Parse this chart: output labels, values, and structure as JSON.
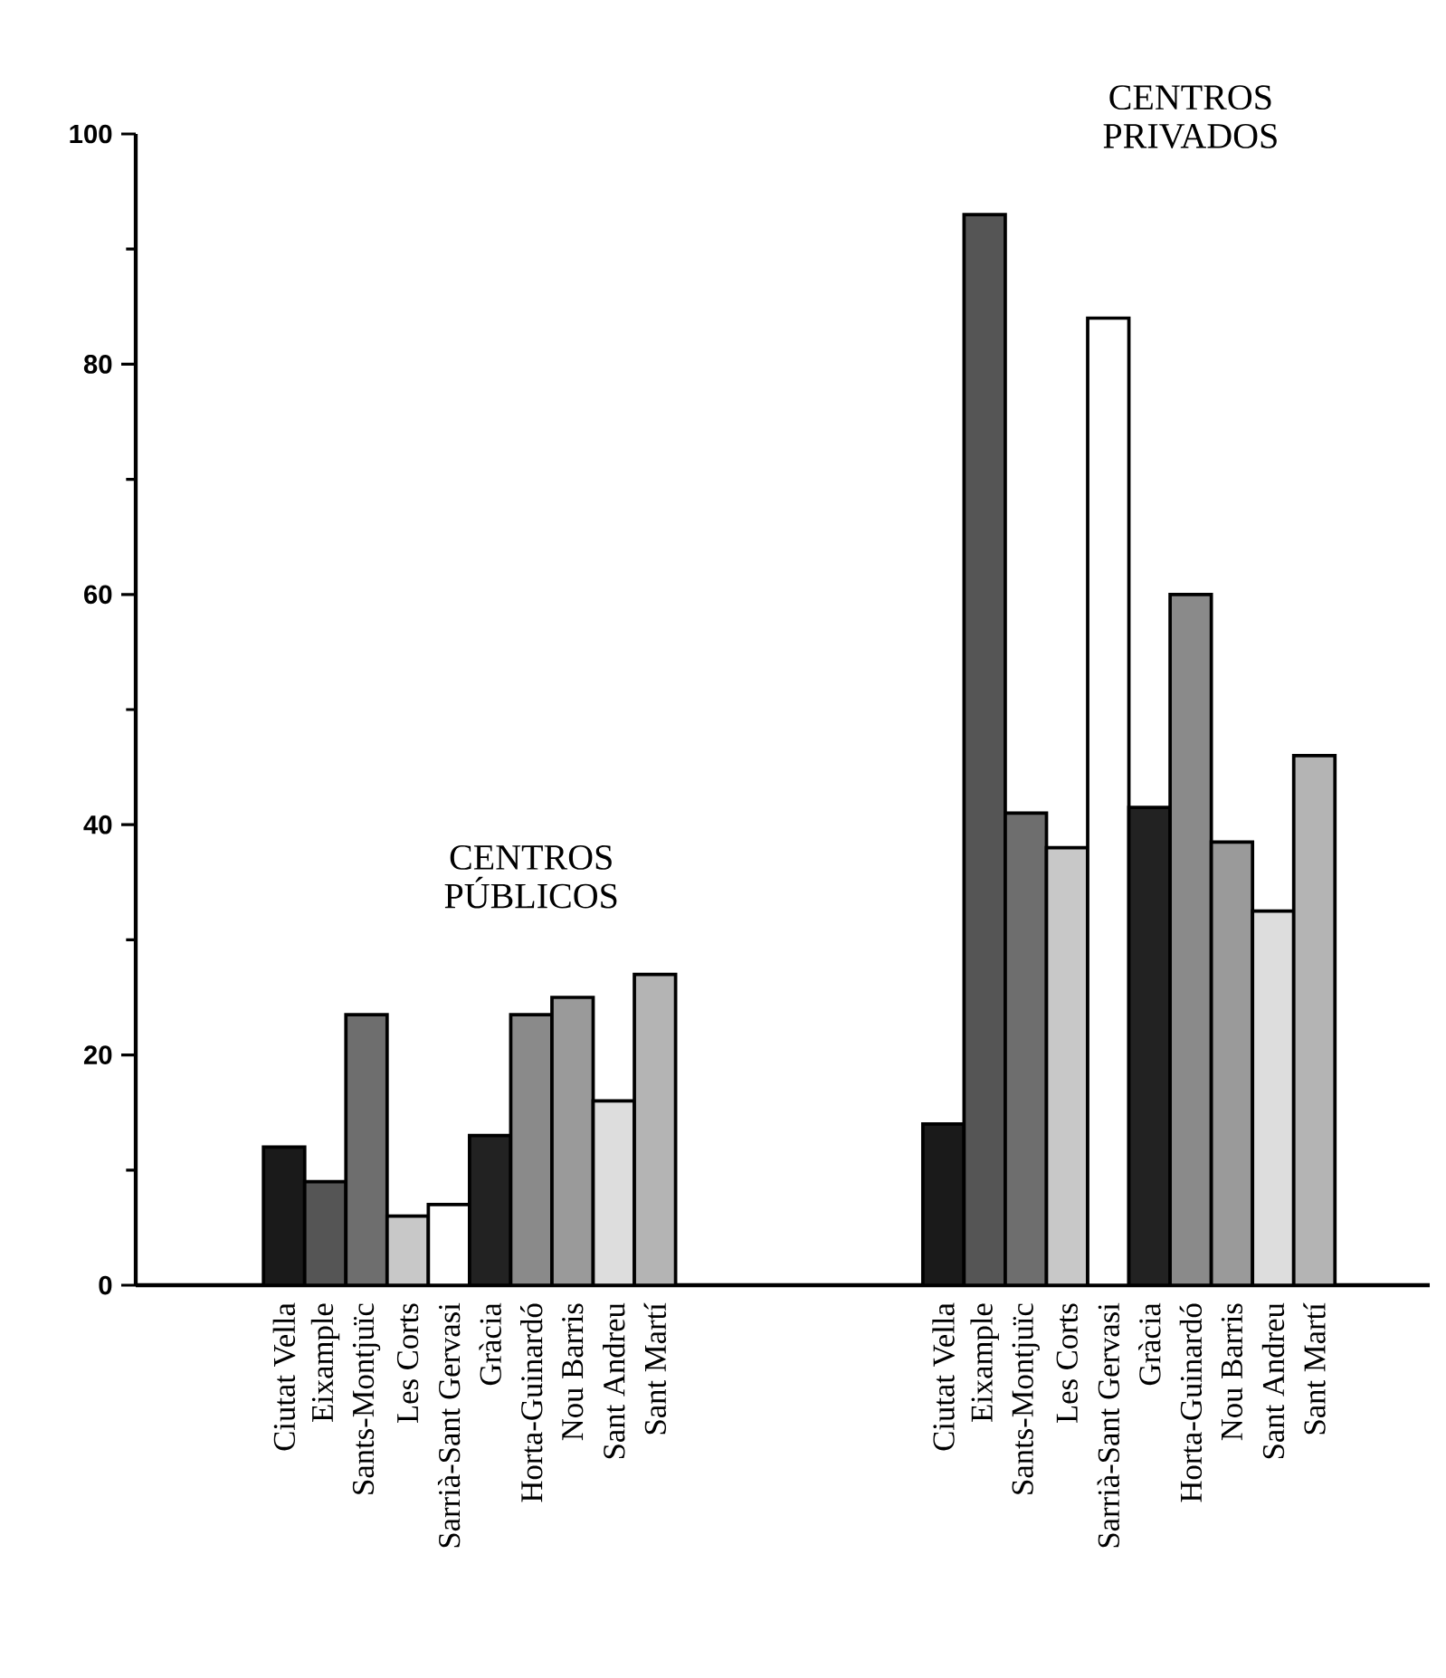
{
  "chart_data": {
    "type": "bar",
    "categories": [
      "Ciutat Vella",
      "Eixample",
      "Sants-Montjuïc",
      "Les Corts",
      "Sarrià-Sant Gervasi",
      "Gràcia",
      "Horta-Guinardó",
      "Nou Barris",
      "Sant Andreu",
      "Sant Martí",
      null,
      null,
      null,
      null,
      null,
      null,
      "Ciutat Vella",
      "Eixample",
      "Sants-Montjuïc",
      "Les Corts",
      "Sarrià-Sant Gervasi",
      "Gràcia",
      "Horta-Guinardó",
      "Nou Barris",
      "Sant Andreu",
      "Sant Martí"
    ],
    "values": [
      12,
      9,
      23.5,
      6,
      7,
      13,
      23.5,
      25,
      16,
      27,
      null,
      null,
      null,
      null,
      null,
      null,
      14,
      93,
      41,
      38,
      84,
      41.5,
      60,
      38.5,
      32.5,
      46
    ],
    "colors": [
      "#1a1a1a",
      "#555555",
      "#6e6e6e",
      "#c8c8c8",
      "#ffffff",
      "#222222",
      "#8a8a8a",
      "#9a9a9a",
      "#dddddd",
      "#b4b4b4",
      null,
      null,
      null,
      null,
      null,
      null,
      "#1a1a1a",
      "#555555",
      "#6e6e6e",
      "#c8c8c8",
      "#ffffff",
      "#222222",
      "#8a8a8a",
      "#9a9a9a",
      "#dddddd",
      "#b4b4b4"
    ],
    "ylim": [
      0,
      100
    ],
    "yticks": [
      0,
      20,
      40,
      60,
      80,
      100
    ],
    "annotations": [
      "CENTROS PÚBLICOS",
      "CENTROS PRIVADOS"
    ]
  }
}
